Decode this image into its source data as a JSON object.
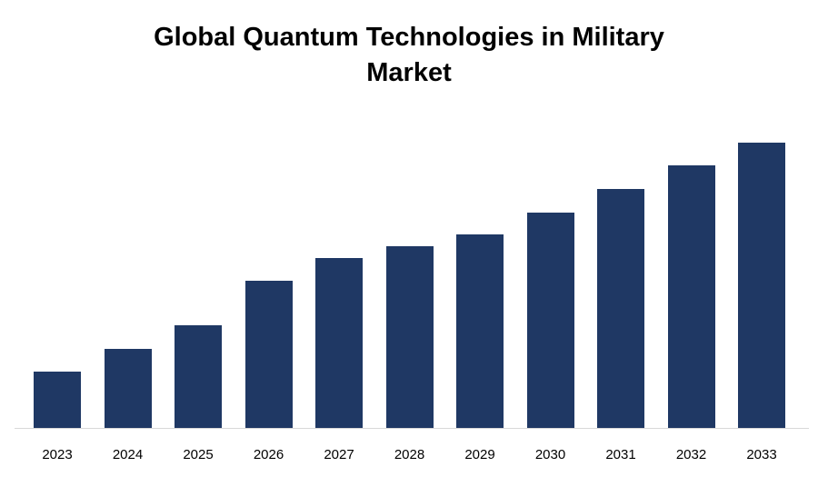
{
  "title": "Global Quantum Technologies in Military Market",
  "colors": {
    "bar": "#1f3864",
    "axis": "#d9d9d9",
    "title": "#000000",
    "background": "#ffffff"
  },
  "chart_data": {
    "type": "bar",
    "title": "Global Quantum Technologies in Military Market",
    "categories": [
      "2023",
      "2024",
      "2025",
      "2026",
      "2027",
      "2028",
      "2029",
      "2030",
      "2031",
      "2032",
      "2033"
    ],
    "values": [
      65,
      91,
      117,
      168,
      194,
      207,
      220,
      245,
      272,
      299,
      324
    ],
    "xlabel": "",
    "ylabel": "",
    "ylim": [
      0,
      350
    ],
    "grid": false,
    "legend": false,
    "value_axis_visible": false,
    "bar_color": "#1f3864"
  }
}
